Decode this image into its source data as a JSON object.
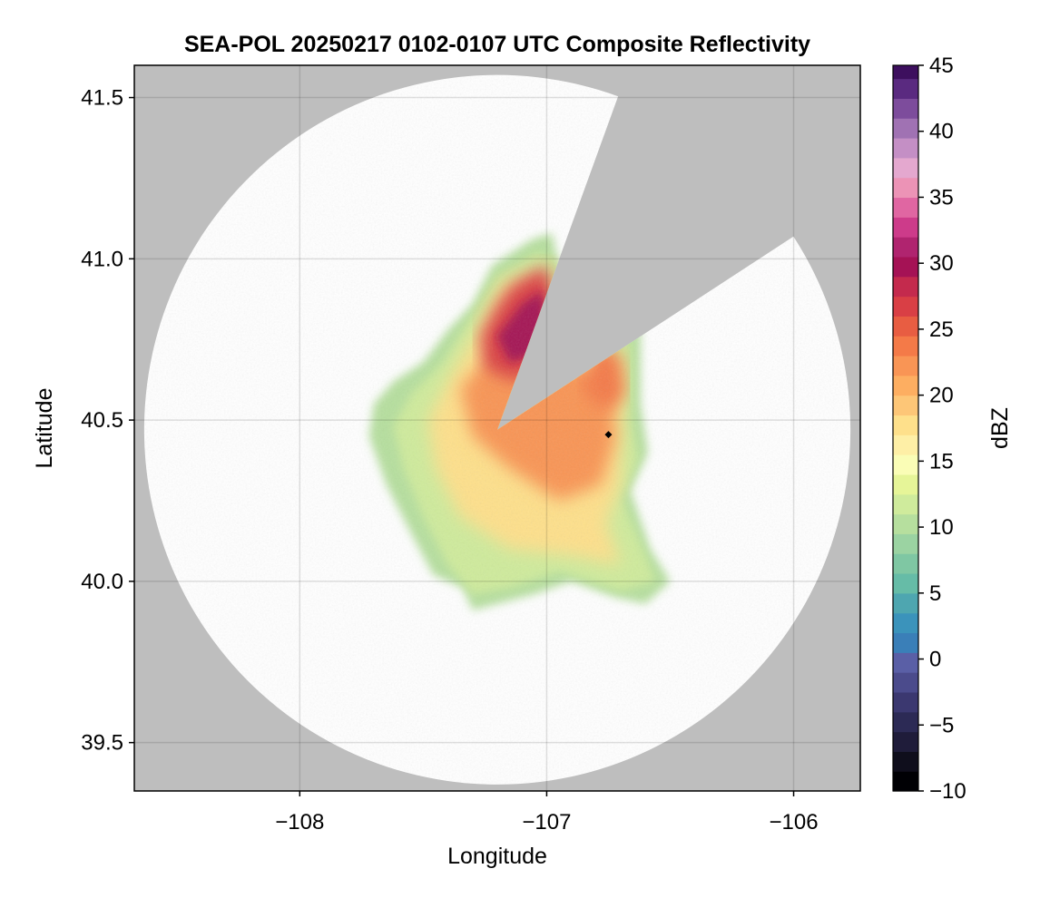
{
  "chart_data": {
    "type": "heatmap",
    "title": "SEA-POL 20250217 0102-0107 UTC Composite Reflectivity",
    "xlabel": "Longitude",
    "ylabel": "Latitude",
    "xlim": [
      -108.67,
      -105.73
    ],
    "ylim": [
      39.35,
      41.6
    ],
    "x_ticks": [
      -108,
      -107,
      -106
    ],
    "x_tick_labels": [
      "−108",
      "−107",
      "−106"
    ],
    "y_ticks": [
      39.5,
      40.0,
      40.5,
      41.0,
      41.5
    ],
    "y_tick_labels": [
      "39.5",
      "40.0",
      "40.5",
      "41.0",
      "41.5"
    ],
    "grid": true,
    "background_color": "#bebebe",
    "radar_coverage": {
      "center": [
        -107.2,
        40.47
      ],
      "range_lon": 1.43,
      "range_lat": 1.1,
      "blocked_sector_bearing_deg": [
        20,
        57
      ],
      "fill": "#ffffff"
    },
    "marker": {
      "lon": -106.75,
      "lat": 40.455,
      "shape": "diamond",
      "color": "#000000"
    },
    "colorbar": {
      "label": "dBZ",
      "colormap": "Spectral (reversed)",
      "range": [
        -10,
        45
      ],
      "step": 1.5,
      "ticks": [
        -10,
        -5,
        0,
        5,
        10,
        15,
        20,
        25,
        30,
        35,
        40,
        45
      ],
      "tick_labels": [
        "−10",
        "−5",
        "0",
        "5",
        "10",
        "15",
        "20",
        "25",
        "30",
        "35",
        "40",
        "45"
      ],
      "colors": [
        "#000004",
        "#0f0e1c",
        "#1f1c3a",
        "#2c2a55",
        "#3b3870",
        "#4b4b8c",
        "#5a5fa6",
        "#3a7fb8",
        "#3b93bb",
        "#4ea6b0",
        "#66bca7",
        "#7fc7a3",
        "#9bd3a2",
        "#b6df9e",
        "#cfeb9c",
        "#e6f598",
        "#fafdb6",
        "#feefa6",
        "#fee08b",
        "#fdc677",
        "#fdae61",
        "#f99555",
        "#f47a48",
        "#e85d42",
        "#d93f45",
        "#c42a4d",
        "#a51255",
        "#b0246f",
        "#cd3b8a",
        "#e066a2",
        "#ec93b6",
        "#e4a8cf",
        "#c48fc5",
        "#a072b3",
        "#7d4c9c",
        "#5a2a80",
        "#3d0f5e"
      ]
    },
    "field_description_values_dbz": {
      "core_west_of_gap": 30,
      "stratiform_bulk": 18,
      "western_edge": 10,
      "southern_band": 12
    }
  }
}
